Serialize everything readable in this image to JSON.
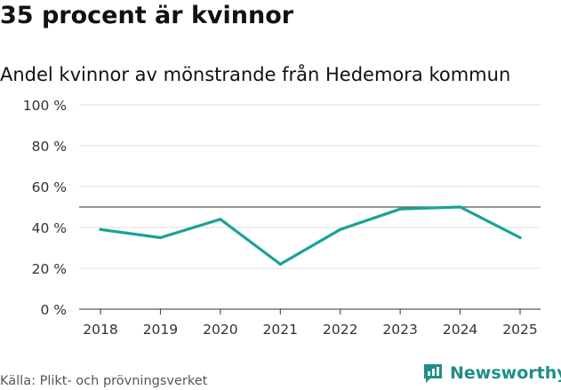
{
  "header": {
    "title": "35 procent är kvinnor",
    "subtitle": "Andel kvinnor av mönstrande från Hedemora kommun"
  },
  "footer": {
    "source": "Källa: Plikt- och prövningsverket",
    "brand": "Newsworthy",
    "brand_icon": "bar-chart-speech-icon"
  },
  "colors": {
    "line": "#17a398",
    "reference_line": "#555555",
    "grid": "#dddddd",
    "brand": "#1f8f84"
  },
  "chart_data": {
    "type": "line",
    "title": "35 procent är kvinnor",
    "subtitle": "Andel kvinnor av mönstrande från Hedemora kommun",
    "xlabel": "",
    "ylabel": "",
    "categories": [
      "2018",
      "2019",
      "2020",
      "2021",
      "2022",
      "2023",
      "2024",
      "2025"
    ],
    "series": [
      {
        "name": "Andel kvinnor",
        "values": [
          39,
          35,
          44,
          22,
          39,
          49,
          50,
          35
        ]
      }
    ],
    "reference_line": 50,
    "ylim": [
      0,
      100
    ],
    "yticks": [
      0,
      20,
      40,
      60,
      80,
      100
    ],
    "ytick_labels": [
      "0 %",
      "20 %",
      "40 %",
      "60 %",
      "80 %",
      "100 %"
    ],
    "grid": true,
    "legend": "none"
  }
}
